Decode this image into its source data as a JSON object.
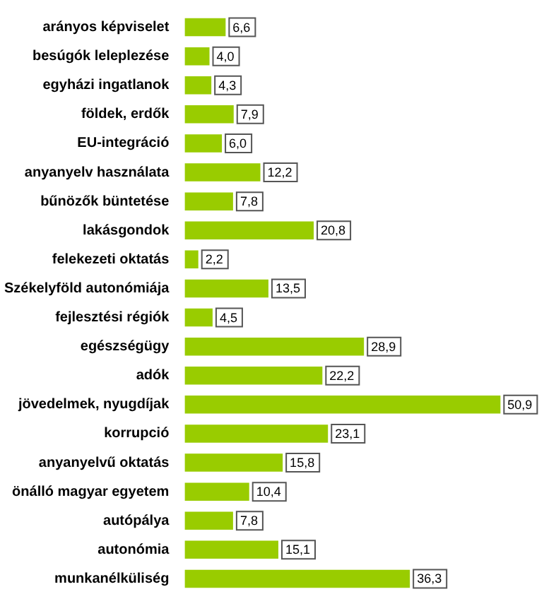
{
  "chart_data": {
    "type": "bar",
    "orientation": "horizontal",
    "categories": [
      "arányos képviselet",
      "besúgók leleplezése",
      "egyházi ingatlanok",
      "földek, erdők",
      "EU-integráció",
      "anyanyelv használata",
      "bűnözők büntetése",
      "lakásgondok",
      "felekezeti oktatás",
      "Székelyföld autonómiája",
      "fejlesztési régiók",
      "egészségügy",
      "adók",
      "jövedelmek, nyugdíjak",
      "korrupció",
      "anyanyelvű oktatás",
      "önálló magyar egyetem",
      "autópálya",
      "autonómia",
      "munkanélküliség"
    ],
    "values": [
      6.6,
      4.0,
      4.3,
      7.9,
      6.0,
      12.2,
      7.8,
      20.8,
      2.2,
      13.5,
      4.5,
      28.9,
      22.2,
      50.9,
      23.1,
      15.8,
      10.4,
      7.8,
      15.1,
      36.3
    ],
    "value_labels": [
      "6,6",
      "4,0",
      "4,3",
      "7,9",
      "6,0",
      "12,2",
      "7,8",
      "20,8",
      "2,2",
      "13,5",
      "4,5",
      "28,9",
      "22,2",
      "50,9",
      "23,1",
      "15,8",
      "10,4",
      "7,8",
      "15,1",
      "36,3"
    ],
    "color": "#99cc00",
    "legend": false
  }
}
